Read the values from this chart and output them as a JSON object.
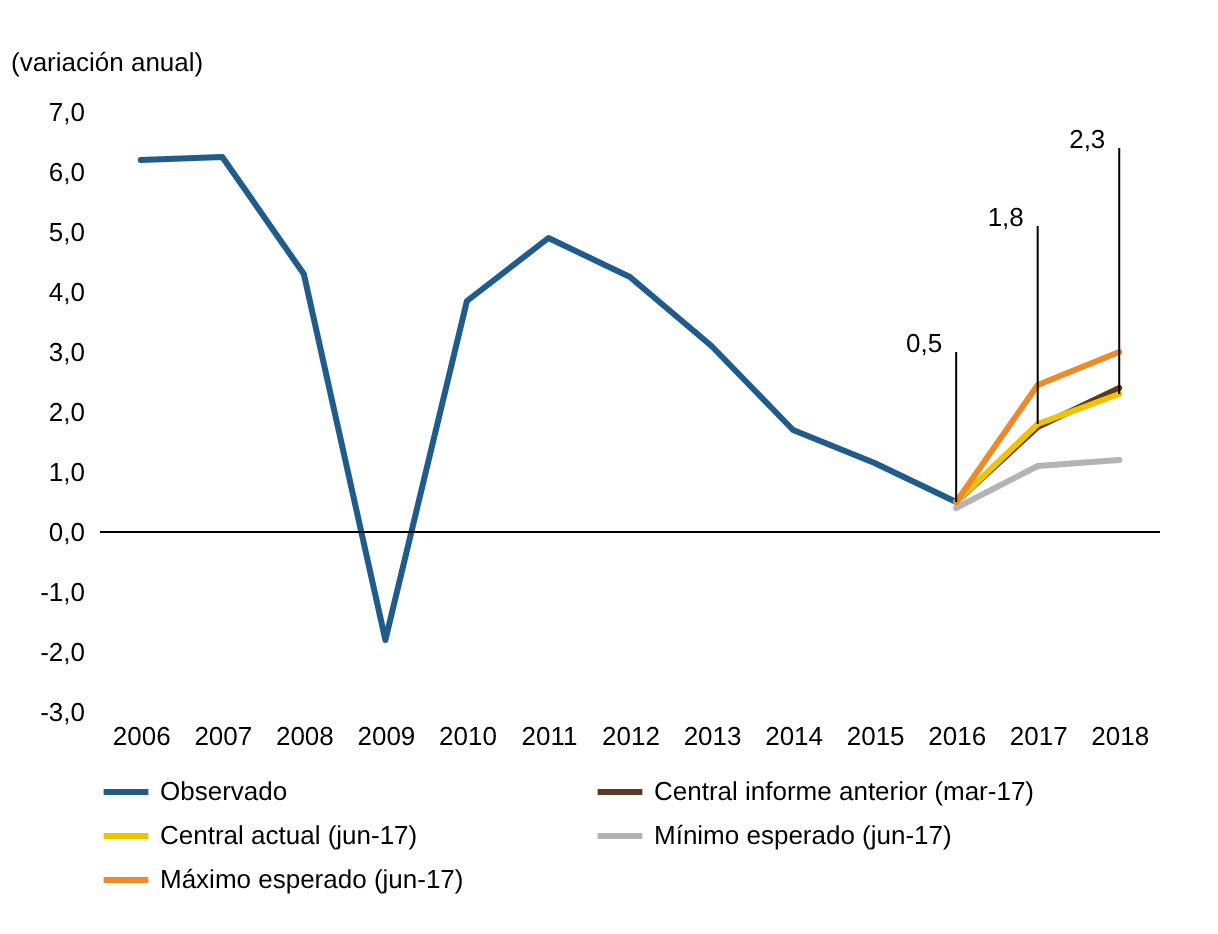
{
  "chart_data": {
    "type": "line",
    "ylabel": "(variación anual)",
    "categories": [
      "2006",
      "2007",
      "2008",
      "2009",
      "2010",
      "2011",
      "2012",
      "2013",
      "2014",
      "2015",
      "2016",
      "2017",
      "2018"
    ],
    "series": [
      {
        "name": "Observado",
        "color": "#1f5c8b",
        "values": [
          6.2,
          6.25,
          4.3,
          -1.8,
          3.85,
          4.9,
          4.25,
          3.1,
          1.7,
          1.15,
          0.5,
          null,
          null
        ]
      },
      {
        "name": "Central informe anterior (mar-17)",
        "color": "#5c3a21",
        "values": [
          null,
          null,
          null,
          null,
          null,
          null,
          null,
          null,
          null,
          null,
          0.5,
          1.75,
          2.4
        ]
      },
      {
        "name": "Central actual (jun-17)",
        "color": "#f2c200",
        "values": [
          null,
          null,
          null,
          null,
          null,
          null,
          null,
          null,
          null,
          null,
          0.5,
          1.8,
          2.3
        ]
      },
      {
        "name": "Mínimo esperado (jun-17)",
        "color": "#b3b3b3",
        "values": [
          null,
          null,
          null,
          null,
          null,
          null,
          null,
          null,
          null,
          null,
          0.4,
          1.1,
          1.2
        ]
      },
      {
        "name": "Máximo esperado (jun-17)",
        "color": "#ee8a2a",
        "values": [
          null,
          null,
          null,
          null,
          null,
          null,
          null,
          null,
          null,
          null,
          0.5,
          2.45,
          3.0
        ]
      }
    ],
    "ylim": [
      -3,
      7
    ],
    "yticks": [
      {
        "value": -3,
        "label": "-3,0"
      },
      {
        "value": -2,
        "label": "-2,0"
      },
      {
        "value": -1,
        "label": "-1,0"
      },
      {
        "value": 0,
        "label": "0,0"
      },
      {
        "value": 1,
        "label": "1,0"
      },
      {
        "value": 2,
        "label": "2,0"
      },
      {
        "value": 3,
        "label": "3,0"
      },
      {
        "value": 4,
        "label": "4,0"
      },
      {
        "value": 5,
        "label": "5,0"
      },
      {
        "value": 6,
        "label": "6,0"
      },
      {
        "value": 7,
        "label": "7,0"
      }
    ],
    "ref_lines": [
      {
        "axis": "y",
        "value": 0,
        "color": "#000000"
      }
    ],
    "annotations": [
      {
        "text": "0,5",
        "x": "2016",
        "y": 0.5
      },
      {
        "text": "1,8",
        "x": "2017",
        "y": 1.8
      },
      {
        "text": "2,3",
        "x": "2018",
        "y": 2.3
      }
    ],
    "legend": "bottom",
    "grid": false,
    "marker": "none",
    "line_style": "solid"
  }
}
